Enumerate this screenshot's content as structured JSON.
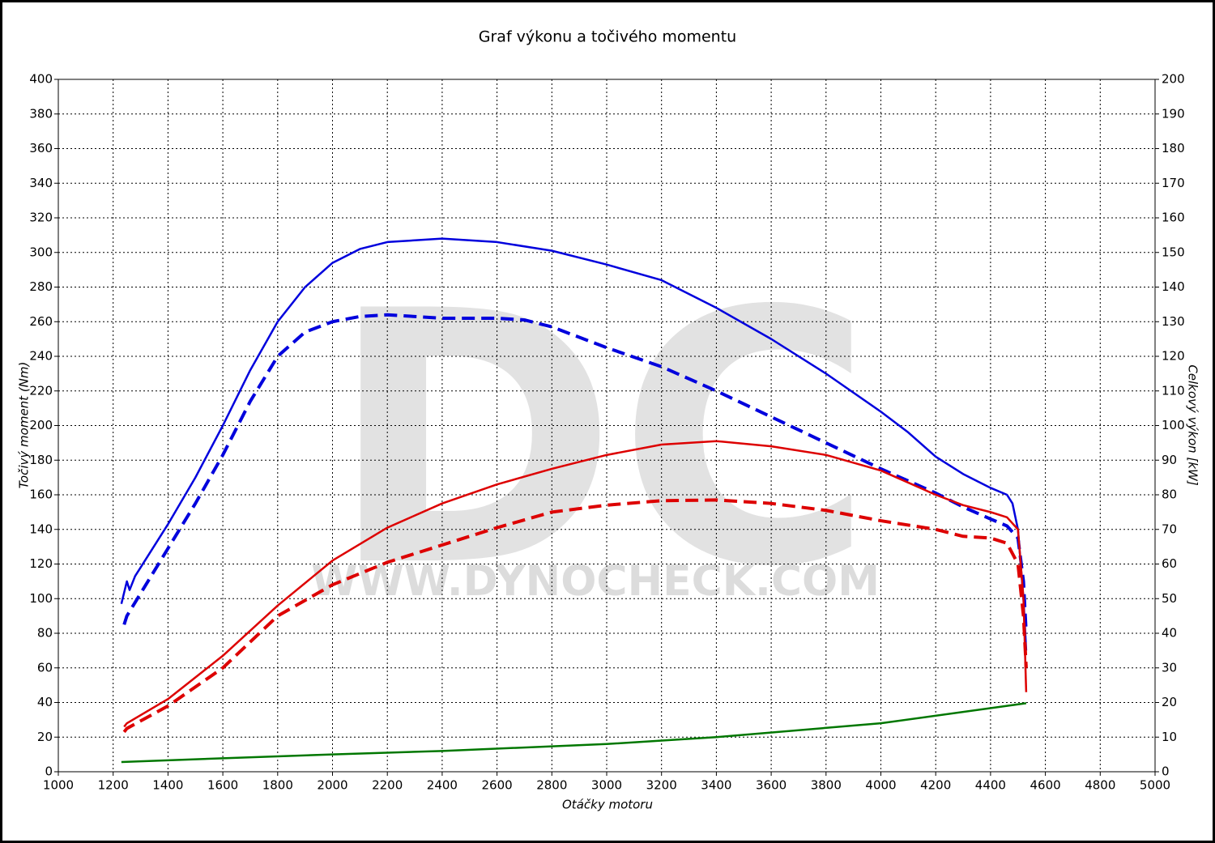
{
  "chart_data": {
    "type": "line",
    "title": "Graf výkonu a točivého momentu",
    "x_label": "Otáčky motoru",
    "y_label": "Točivý moment (Nm)",
    "y2_label": "Celkový výkon [kW]",
    "watermark": "DC",
    "watermark_url": "WWW.DYNOCHECK.COM",
    "xlim": [
      1000,
      5000
    ],
    "xticks": [
      1000,
      1200,
      1400,
      1600,
      1800,
      2000,
      2200,
      2400,
      2600,
      2800,
      3000,
      3200,
      3400,
      3600,
      3800,
      4000,
      4200,
      4400,
      4600,
      4800,
      5000
    ],
    "ylim": [
      0,
      400
    ],
    "yticks": [
      0,
      20,
      40,
      60,
      80,
      100,
      120,
      140,
      160,
      180,
      200,
      220,
      240,
      260,
      280,
      300,
      320,
      340,
      360,
      380,
      400
    ],
    "y2lim": [
      0,
      200
    ],
    "y2ticks": [
      0,
      10,
      20,
      30,
      40,
      50,
      60,
      70,
      80,
      90,
      100,
      110,
      120,
      130,
      140,
      150,
      160,
      170,
      180,
      190,
      200
    ],
    "grid": true,
    "series": [
      {
        "color": "#0000dd",
        "dashed": false,
        "axis": "y",
        "x": [
          1230,
          1250,
          1260,
          1280,
          1300,
          1400,
          1500,
          1600,
          1700,
          1800,
          1900,
          2000,
          2100,
          2200,
          2400,
          2600,
          2800,
          3000,
          3200,
          3400,
          3600,
          3800,
          4000,
          4100,
          4200,
          4300,
          4400,
          4460,
          4480,
          4500,
          4520,
          4530
        ],
        "values": [
          97,
          110,
          105,
          113,
          118,
          143,
          170,
          200,
          232,
          260,
          280,
          294,
          302,
          306,
          308,
          306,
          301,
          293,
          284,
          268,
          250,
          230,
          208,
          196,
          182,
          172,
          164,
          160,
          155,
          140,
          100,
          70
        ]
      },
      {
        "color": "#0000dd",
        "dashed": true,
        "axis": "y",
        "x": [
          1240,
          1250,
          1300,
          1400,
          1500,
          1600,
          1700,
          1800,
          1900,
          2000,
          2100,
          2200,
          2400,
          2600,
          2700,
          2800,
          3000,
          3200,
          3400,
          3600,
          3800,
          4000,
          4200,
          4300,
          4400,
          4460,
          4500,
          4520,
          4530
        ],
        "values": [
          85,
          90,
          103,
          129,
          155,
          183,
          214,
          240,
          254,
          260,
          263,
          264,
          262,
          262,
          261,
          257,
          245,
          234,
          220,
          205,
          190,
          175,
          161,
          153,
          146,
          142,
          135,
          110,
          80
        ]
      },
      {
        "color": "#dd0000",
        "dashed": false,
        "axis": "y2",
        "x": [
          1240,
          1250,
          1400,
          1600,
          1800,
          2000,
          2200,
          2400,
          2600,
          2800,
          3000,
          3200,
          3400,
          3600,
          3800,
          4000,
          4200,
          4300,
          4400,
          4460,
          4500,
          4520,
          4530
        ],
        "values": [
          13,
          14,
          21,
          33.5,
          48,
          61,
          70.5,
          77.5,
          83,
          87.5,
          91.5,
          94.5,
          95.5,
          94,
          91.5,
          87,
          80,
          77,
          75,
          73.5,
          70,
          50,
          23
        ]
      },
      {
        "color": "#dd0000",
        "dashed": true,
        "axis": "y2",
        "x": [
          1240,
          1250,
          1400,
          1600,
          1800,
          2000,
          2200,
          2400,
          2600,
          2800,
          3000,
          3200,
          3400,
          3600,
          3800,
          4000,
          4200,
          4300,
          4400,
          4460,
          4500,
          4520,
          4530
        ],
        "values": [
          11.5,
          12.5,
          19,
          30,
          45,
          54,
          60.5,
          65.5,
          70.5,
          75,
          77,
          78.3,
          78.5,
          77.5,
          75.5,
          72.5,
          70,
          68,
          67.5,
          66,
          60,
          45,
          30
        ]
      },
      {
        "color": "#007700",
        "dashed": false,
        "axis": "y2",
        "x": [
          1230,
          1600,
          2000,
          2400,
          3000,
          3400,
          4000,
          4530
        ],
        "values": [
          2.8,
          3.9,
          5,
          6,
          8,
          10,
          14,
          19.8
        ]
      }
    ]
  }
}
